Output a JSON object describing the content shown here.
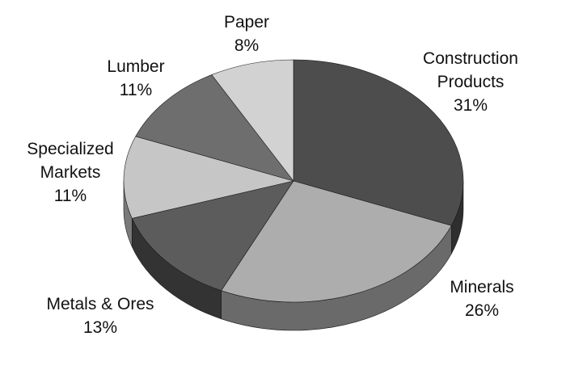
{
  "chart_data": {
    "type": "pie",
    "three_d": true,
    "categories": [
      "Construction Products",
      "Minerals",
      "Metals & Ores",
      "Specialized Markets",
      "Lumber",
      "Paper"
    ],
    "values": [
      31,
      26,
      13,
      11,
      11,
      8
    ],
    "unit": "%",
    "labels": [
      {
        "lines": [
          "Construction",
          "Products"
        ],
        "pct": "31%"
      },
      {
        "lines": [
          "Minerals"
        ],
        "pct": "26%"
      },
      {
        "lines": [
          "Metals & Ores"
        ],
        "pct": "13%"
      },
      {
        "lines": [
          "Specialized",
          "Markets"
        ],
        "pct": "11%"
      },
      {
        "lines": [
          "Lumber"
        ],
        "pct": "11%"
      },
      {
        "lines": [
          "Paper"
        ],
        "pct": "8%"
      }
    ],
    "colors": [
      "#4d4d4d",
      "#adadad",
      "#5c5c5c",
      "#c6c6c6",
      "#6e6e6e",
      "#d2d2d2"
    ],
    "side_colors": [
      "#2e2e2e",
      "#6a6a6a",
      "#333333",
      "#7a7a7a",
      "#3e3e3e",
      "#808080"
    ],
    "legend": "none",
    "start": "12 o'clock, clockwise"
  }
}
